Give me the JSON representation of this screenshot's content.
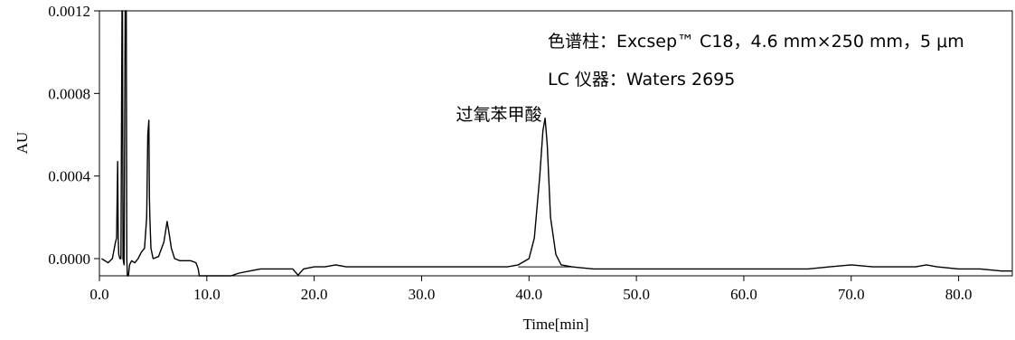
{
  "chart_data": {
    "type": "line",
    "title": "",
    "xlabel": "Time[min]",
    "ylabel": "AU",
    "xlim": [
      0,
      85
    ],
    "ylim": [
      -0.0001,
      0.0012
    ],
    "x_ticks": [
      0,
      10,
      20,
      30,
      40,
      50,
      60,
      70,
      80
    ],
    "x_tick_labels": [
      "0.0",
      "10.0",
      "20.0",
      "30.0",
      "40.0",
      "50.0",
      "60.0",
      "70.0",
      "80.0"
    ],
    "y_ticks": [
      0,
      0.0004,
      0.0008,
      0.0012
    ],
    "y_tick_labels": [
      "0.0000",
      "0.0004",
      "0.0008",
      "0.0012"
    ],
    "grid": false,
    "series": [
      {
        "x": [
          0.2,
          0.8,
          1.2,
          1.5,
          1.6,
          1.7,
          1.75,
          1.8,
          1.9,
          2.0,
          2.1,
          2.15,
          2.2,
          2.3,
          2.4,
          2.5,
          2.55,
          2.6,
          2.7,
          2.8,
          3.0,
          3.3,
          3.6,
          3.9,
          4.2,
          4.4,
          4.5,
          4.6,
          4.65,
          4.7,
          4.8,
          5.0,
          5.5,
          6.0,
          6.3,
          6.5,
          6.7,
          7.0,
          7.5,
          8.0,
          8.5,
          9.0,
          9.2,
          9.3,
          9.35,
          12.2,
          12.25,
          13,
          14,
          15,
          16,
          17,
          18,
          18.5,
          19,
          20,
          21,
          22,
          23,
          24,
          26,
          28,
          30,
          32,
          34,
          36,
          38,
          39,
          40,
          40.5,
          41,
          41.3,
          41.5,
          41.7,
          42,
          42.5,
          43,
          44,
          46,
          48,
          50,
          52,
          54,
          56,
          58,
          60,
          62,
          64,
          66,
          68,
          70,
          72,
          74,
          76,
          77,
          78,
          80,
          82,
          84,
          85
        ],
        "y": [
          0.0,
          -2e-05,
          0.0,
          8e-05,
          0.0001,
          0.00047,
          0.0001,
          2e-05,
          0.0,
          0.0,
          0.0014,
          0.0014,
          0.0,
          -3e-05,
          0.0014,
          0.0014,
          0.0,
          -0.0001,
          -0.0001,
          -3e-05,
          -1e-05,
          -2e-05,
          0.0,
          3e-05,
          5e-05,
          0.0002,
          0.0006,
          0.00067,
          0.0003,
          0.0002,
          5e-05,
          0.0,
          1e-05,
          8e-05,
          0.00018,
          0.00012,
          5e-05,
          0.0,
          -1e-05,
          -1e-05,
          -1e-05,
          -2e-05,
          -5e-05,
          -0.0001,
          -0.0001,
          -0.0001,
          -9e-05,
          -7e-05,
          -6e-05,
          -5e-05,
          -5e-05,
          -5e-05,
          -5e-05,
          -8e-05,
          -5e-05,
          -4e-05,
          -4e-05,
          -3e-05,
          -4e-05,
          -4e-05,
          -4e-05,
          -4e-05,
          -4e-05,
          -4e-05,
          -4e-05,
          -4e-05,
          -4e-05,
          -3e-05,
          0.0,
          0.0001,
          0.0004,
          0.00062,
          0.00068,
          0.00055,
          0.0002,
          2e-05,
          -3e-05,
          -4e-05,
          -5e-05,
          -5e-05,
          -5e-05,
          -5e-05,
          -5e-05,
          -5e-05,
          -5e-05,
          -5e-05,
          -5e-05,
          -5e-05,
          -5e-05,
          -4e-05,
          -3e-05,
          -4e-05,
          -4e-05,
          -4e-05,
          -3e-05,
          -4e-05,
          -5e-05,
          -5e-05,
          -6e-05,
          -6e-05
        ]
      }
    ],
    "annotations": [
      {
        "text": "过氧苯甲酸",
        "x": 37.2,
        "y": 0.00068
      }
    ],
    "info_lines": [
      "色谱柱：Excsep™ C18，4.6 mm×250 mm，5 μm",
      "LC 仪器：Waters 2695"
    ],
    "colors": {
      "line": "#000000",
      "axis": "#000000",
      "background": "#ffffff"
    }
  }
}
